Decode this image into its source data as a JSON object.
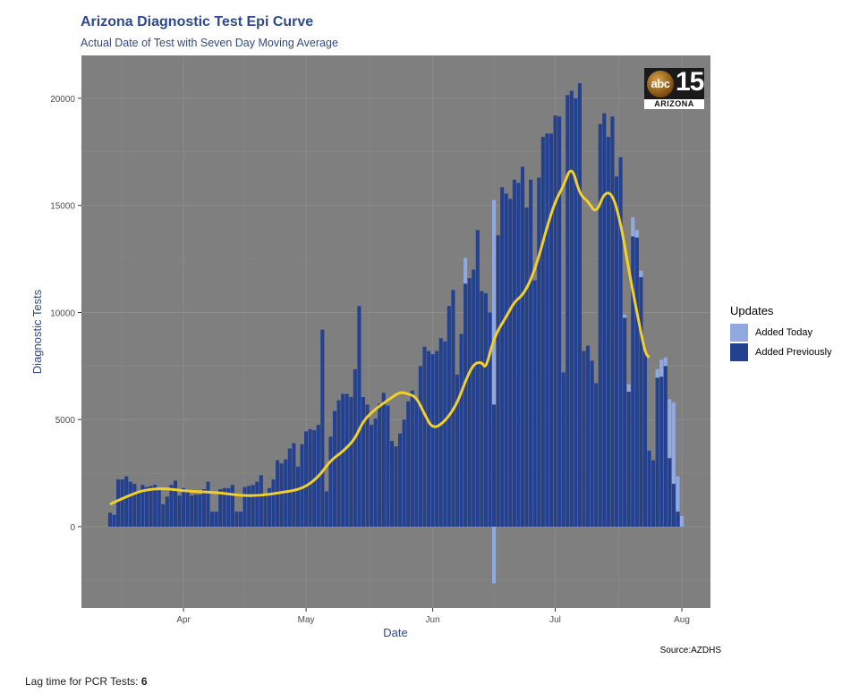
{
  "title": "Arizona Diagnostic Test Epi Curve",
  "subtitle": "Actual Date of Test with Seven Day Moving Average",
  "source": "Source:AZDHS",
  "footnote": {
    "label": "Lag time for PCR Tests: ",
    "value": "6"
  },
  "logo": {
    "network": "abc",
    "channel": "15",
    "state": "ARIZONA"
  },
  "colors": {
    "panel_bg": "#7f7f7f",
    "grid": "#8c8c8c",
    "added_previously": "#24418f",
    "added_today": "#92a8e0",
    "moving_average": "#f2cf2a",
    "text_blue": "#2d4a8e"
  },
  "chart_data": {
    "type": "bar",
    "xlabel": "Date",
    "ylabel": "Diagnostic Tests",
    "ylim": [
      -3800,
      22000
    ],
    "yticks": [
      0,
      5000,
      10000,
      15000,
      20000
    ],
    "xlim": [
      "2020-03-07",
      "2020-08-08"
    ],
    "xticks": [
      {
        "label": "Apr",
        "date": "2020-04-01"
      },
      {
        "label": "May",
        "date": "2020-05-01"
      },
      {
        "label": "Jun",
        "date": "2020-06-01"
      },
      {
        "label": "Jul",
        "date": "2020-07-01"
      },
      {
        "label": "Aug",
        "date": "2020-08-01"
      }
    ],
    "start_date": "2020-03-14",
    "grid": true,
    "legend": {
      "title": "Updates",
      "position": "right",
      "items": [
        "Added Today",
        "Added Previously"
      ]
    },
    "series": [
      {
        "name": "Added Previously",
        "values": [
          650,
          550,
          2200,
          2200,
          2350,
          2100,
          2000,
          1600,
          1950,
          1850,
          1900,
          1950,
          1800,
          1050,
          1400,
          1950,
          2150,
          1450,
          1800,
          1650,
          1450,
          1500,
          1500,
          1750,
          2100,
          700,
          700,
          1750,
          1800,
          1800,
          1950,
          700,
          700,
          1850,
          1900,
          1950,
          2100,
          2400,
          1500,
          1800,
          2200,
          3100,
          2950,
          3150,
          3650,
          3900,
          2800,
          3850,
          4450,
          4550,
          4500,
          4750,
          9200,
          1650,
          4200,
          5400,
          5900,
          6200,
          6200,
          6050,
          7350,
          10300,
          6050,
          5700,
          4750,
          5050,
          5750,
          6250,
          5650,
          4000,
          3750,
          4350,
          5000,
          5850,
          6350,
          6000,
          7500,
          8400,
          8200,
          8050,
          8200,
          8800,
          8650,
          10300,
          11050,
          7100,
          9000,
          11350,
          11600,
          12000,
          13850,
          11000,
          10900,
          10000,
          5700,
          13600,
          15850,
          15550,
          15300,
          16200,
          16050,
          16800,
          14900,
          16200,
          11500,
          16300,
          18200,
          18350,
          18350,
          19200,
          19150,
          7200,
          20150,
          20350,
          20000,
          20700,
          8200,
          8450,
          7750,
          6700,
          18800,
          19300,
          18200,
          19150,
          16350,
          17250,
          9750,
          6300,
          13550,
          13500,
          11650,
          8200,
          3550,
          3100,
          6950,
          7000,
          7500,
          3200,
          2000,
          700,
          0
        ],
        "negatives": [
          0,
          0,
          0,
          0,
          0,
          0,
          0,
          0,
          0,
          0,
          0,
          0,
          0,
          0,
          0,
          0,
          0,
          0,
          0,
          0,
          0,
          0,
          0,
          0,
          0,
          0,
          0,
          0,
          0,
          0,
          0,
          0,
          0,
          0,
          0,
          0,
          0,
          0,
          0,
          0,
          0,
          0,
          0,
          0,
          0,
          0,
          0,
          0,
          0,
          0,
          0,
          0,
          0,
          0,
          0,
          0,
          0,
          0,
          0,
          0,
          0,
          0,
          0,
          0,
          0,
          0,
          0,
          0,
          0,
          0,
          0,
          0,
          0,
          0,
          0,
          0,
          0,
          0,
          0,
          0,
          0,
          0,
          0,
          0,
          0,
          0,
          0,
          0,
          0,
          0,
          0,
          0,
          0,
          0,
          -2650,
          0,
          0,
          0,
          0,
          0,
          0,
          0,
          0,
          0,
          0,
          0,
          0,
          0,
          0,
          0,
          0,
          0,
          0,
          0,
          0,
          0,
          0,
          0,
          0,
          0,
          0,
          0,
          0,
          0,
          0,
          0,
          0,
          0,
          0,
          0,
          0,
          0,
          0,
          0,
          0,
          0,
          0,
          0,
          0,
          0,
          0
        ]
      },
      {
        "name": "Added Today",
        "values": [
          0,
          0,
          0,
          0,
          0,
          0,
          0,
          0,
          0,
          0,
          0,
          0,
          0,
          0,
          0,
          0,
          0,
          0,
          0,
          0,
          0,
          0,
          0,
          0,
          0,
          0,
          0,
          0,
          0,
          0,
          0,
          0,
          0,
          0,
          0,
          0,
          0,
          0,
          0,
          0,
          0,
          0,
          0,
          0,
          0,
          0,
          0,
          0,
          0,
          0,
          0,
          0,
          0,
          0,
          0,
          0,
          0,
          0,
          0,
          0,
          0,
          0,
          0,
          0,
          0,
          0,
          0,
          0,
          0,
          0,
          0,
          0,
          0,
          0,
          0,
          0,
          0,
          0,
          0,
          0,
          0,
          0,
          0,
          0,
          0,
          0,
          0,
          1200,
          0,
          0,
          0,
          0,
          0,
          0,
          9550,
          0,
          0,
          0,
          0,
          0,
          0,
          0,
          0,
          0,
          0,
          0,
          0,
          0,
          0,
          0,
          0,
          0,
          0,
          0,
          0,
          0,
          0,
          0,
          0,
          0,
          0,
          0,
          0,
          0,
          0,
          0,
          150,
          350,
          900,
          350,
          300,
          0,
          0,
          0,
          0,
          0,
          0,
          0,
          0,
          0,
          0
        ],
        "added_today_top": [
          0,
          0,
          0,
          0,
          0,
          0,
          0,
          0,
          0,
          0,
          0,
          0,
          0,
          0,
          0,
          0,
          0,
          0,
          0,
          0,
          0,
          0,
          0,
          0,
          0,
          0,
          0,
          0,
          0,
          0,
          0,
          0,
          0,
          0,
          0,
          0,
          0,
          0,
          0,
          0,
          0,
          0,
          0,
          0,
          0,
          0,
          0,
          0,
          0,
          0,
          0,
          0,
          0,
          0,
          0,
          0,
          0,
          0,
          0,
          0,
          0,
          0,
          0,
          0,
          0,
          0,
          0,
          0,
          0,
          0,
          0,
          0,
          0,
          0,
          0,
          0,
          0,
          0,
          0,
          0,
          0,
          0,
          0,
          0,
          0,
          0,
          0,
          0,
          0,
          0,
          0,
          0,
          0,
          0,
          0,
          0,
          0,
          0,
          0,
          0,
          0,
          0,
          0,
          0,
          0,
          0,
          0,
          0,
          0,
          0,
          0,
          0,
          0,
          0,
          0,
          0,
          0,
          0,
          0,
          0,
          0,
          0,
          0,
          0,
          0,
          0,
          0,
          0,
          0,
          0,
          0,
          0,
          0,
          0,
          7350,
          7800,
          7900,
          5950,
          5800,
          2350,
          500
        ]
      }
    ],
    "moving_average": {
      "name": "Seven Day Moving Average",
      "points": [
        [
          "2020-03-14",
          1050
        ],
        [
          "2020-03-18",
          1400
        ],
        [
          "2020-03-22",
          1700
        ],
        [
          "2020-03-27",
          1800
        ],
        [
          "2020-04-02",
          1650
        ],
        [
          "2020-04-09",
          1600
        ],
        [
          "2020-04-15",
          1450
        ],
        [
          "2020-04-20",
          1450
        ],
        [
          "2020-04-25",
          1600
        ],
        [
          "2020-04-30",
          1750
        ],
        [
          "2020-05-04",
          2300
        ],
        [
          "2020-05-07",
          3100
        ],
        [
          "2020-05-10",
          3500
        ],
        [
          "2020-05-13",
          4100
        ],
        [
          "2020-05-15",
          4950
        ],
        [
          "2020-05-18",
          5500
        ],
        [
          "2020-05-21",
          5900
        ],
        [
          "2020-05-24",
          6300
        ],
        [
          "2020-05-26",
          6200
        ],
        [
          "2020-05-28",
          6050
        ],
        [
          "2020-05-30",
          5250
        ],
        [
          "2020-06-01",
          4550
        ],
        [
          "2020-06-04",
          4900
        ],
        [
          "2020-06-07",
          5750
        ],
        [
          "2020-06-09",
          6800
        ],
        [
          "2020-06-11",
          7600
        ],
        [
          "2020-06-13",
          7700
        ],
        [
          "2020-06-14",
          7350
        ],
        [
          "2020-06-16",
          8850
        ],
        [
          "2020-06-19",
          9800
        ],
        [
          "2020-06-21",
          10500
        ],
        [
          "2020-06-23",
          10800
        ],
        [
          "2020-06-25",
          11500
        ],
        [
          "2020-06-27",
          12600
        ],
        [
          "2020-06-29",
          14000
        ],
        [
          "2020-07-01",
          15200
        ],
        [
          "2020-07-03",
          15900
        ],
        [
          "2020-07-05",
          16900
        ],
        [
          "2020-07-07",
          15500
        ],
        [
          "2020-07-09",
          15200
        ],
        [
          "2020-07-11",
          14600
        ],
        [
          "2020-07-13",
          15600
        ],
        [
          "2020-07-15",
          15550
        ],
        [
          "2020-07-17",
          14200
        ],
        [
          "2020-07-19",
          12000
        ],
        [
          "2020-07-21",
          10000
        ],
        [
          "2020-07-23",
          8100
        ],
        [
          "2020-07-24",
          7900
        ]
      ]
    }
  }
}
